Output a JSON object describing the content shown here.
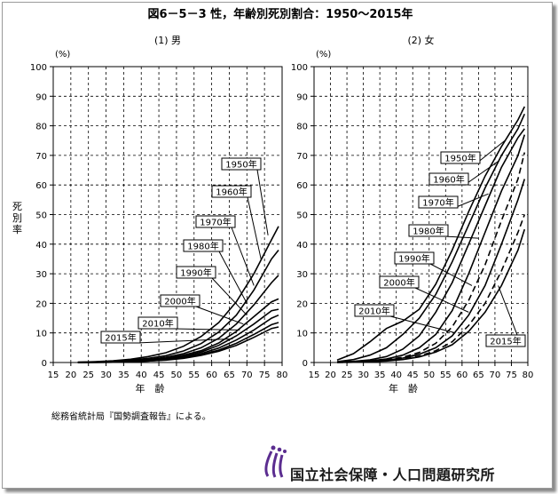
{
  "title": "図6－5－3 性，年齢別死別割合：1950〜2015年",
  "source_note": "総務省統計局『国勢調査報告』による。",
  "org_name": "国立社会保障・人口問題研究所",
  "y_axis_label": "死別率",
  "y_unit": "(%)",
  "x_axis_label": "年　齢",
  "chart_data": [
    {
      "type": "line",
      "subtitle": "(1) 男",
      "xlabel": "年　齢",
      "ylabel": "死別率",
      "unit": "(%)",
      "xlim": [
        15,
        80
      ],
      "ylim": [
        0,
        100
      ],
      "xticks": [
        15,
        20,
        25,
        30,
        35,
        40,
        45,
        50,
        55,
        60,
        65,
        70,
        75,
        80
      ],
      "yticks": [
        0,
        10,
        20,
        30,
        40,
        50,
        60,
        70,
        80,
        90,
        100
      ],
      "grid": true,
      "x": [
        22,
        27,
        32,
        37,
        42,
        47,
        52,
        57,
        62,
        67,
        72,
        77,
        79
      ],
      "series": [
        {
          "name": "1950年",
          "dashed": false,
          "values": [
            0.1,
            0.3,
            0.6,
            1.1,
            2.0,
            3.3,
            5.5,
            8.8,
            13.5,
            20.5,
            30.0,
            41.5,
            46.0
          ]
        },
        {
          "name": "1960年",
          "dashed": false,
          "values": [
            0.1,
            0.2,
            0.4,
            0.8,
            1.4,
            2.3,
            3.9,
            6.4,
            10.3,
            16.0,
            24.5,
            35.0,
            38.0
          ]
        },
        {
          "name": "1970年",
          "dashed": false,
          "values": [
            0.1,
            0.1,
            0.3,
            0.6,
            1.0,
            1.8,
            3.0,
            5.0,
            8.2,
            13.0,
            19.5,
            27.0,
            29.5
          ]
        },
        {
          "name": "1980年",
          "dashed": false,
          "values": [
            0.0,
            0.1,
            0.2,
            0.4,
            0.8,
            1.4,
            2.5,
            4.0,
            6.6,
            10.5,
            15.5,
            20.5,
            21.5
          ]
        },
        {
          "name": "1990年",
          "dashed": false,
          "values": [
            0.0,
            0.1,
            0.2,
            0.4,
            0.7,
            1.2,
            2.1,
            3.5,
            5.8,
            9.0,
            13.0,
            17.5,
            18.0
          ]
        },
        {
          "name": "2000年",
          "dashed": false,
          "values": [
            0.0,
            0.1,
            0.2,
            0.3,
            0.6,
            1.0,
            1.8,
            3.0,
            4.9,
            7.6,
            11.0,
            15.0,
            16.0
          ]
        },
        {
          "name": "2010年",
          "dashed": false,
          "values": [
            0.0,
            0.0,
            0.1,
            0.3,
            0.5,
            0.9,
            1.6,
            2.6,
            4.2,
            6.5,
            9.5,
            12.8,
            13.5
          ]
        },
        {
          "name": "2015年",
          "dashed": false,
          "values": [
            0.0,
            0.0,
            0.1,
            0.2,
            0.5,
            0.8,
            1.4,
            2.4,
            3.8,
            5.8,
            8.5,
            11.5,
            12.0
          ]
        }
      ]
    },
    {
      "type": "line",
      "subtitle": "(2) 女",
      "xlabel": "年　齢",
      "ylabel": "死別率",
      "unit": "(%)",
      "xlim": [
        15,
        80
      ],
      "ylim": [
        0,
        100
      ],
      "xticks": [
        15,
        20,
        25,
        30,
        35,
        40,
        45,
        50,
        55,
        60,
        65,
        70,
        75,
        80
      ],
      "yticks": [
        0,
        10,
        20,
        30,
        40,
        50,
        60,
        70,
        80,
        90,
        100
      ],
      "grid": true,
      "x": [
        22,
        27,
        32,
        37,
        42,
        47,
        52,
        57,
        62,
        67,
        72,
        77,
        79
      ],
      "series": [
        {
          "name": "1950年",
          "dashed": false,
          "values": [
            0.8,
            3.0,
            7.0,
            11.5,
            14.0,
            18.0,
            26.5,
            38.0,
            51.0,
            63.0,
            73.0,
            82.0,
            86.5
          ]
        },
        {
          "name": "1960年",
          "dashed": false,
          "values": [
            0.3,
            1.0,
            2.5,
            5.0,
            9.5,
            15.0,
            23.0,
            34.0,
            46.5,
            59.0,
            70.0,
            79.0,
            84.0
          ]
        },
        {
          "name": "1970年",
          "dashed": false,
          "values": [
            0.2,
            0.4,
            0.9,
            2.0,
            4.5,
            9.0,
            17.0,
            27.0,
            40.0,
            53.0,
            66.0,
            76.0,
            79.0
          ]
        },
        {
          "name": "1980年",
          "dashed": false,
          "values": [
            0.1,
            0.3,
            0.6,
            1.2,
            2.5,
            5.0,
            9.5,
            17.5,
            30.0,
            44.0,
            58.0,
            70.0,
            77.0
          ]
        },
        {
          "name": "1990年",
          "dashed": true,
          "values": [
            0.1,
            0.2,
            0.4,
            0.9,
            1.8,
            3.4,
            6.5,
            12.0,
            21.0,
            33.0,
            48.0,
            62.0,
            71.0
          ]
        },
        {
          "name": "2000年",
          "dashed": false,
          "values": [
            0.1,
            0.2,
            0.4,
            0.8,
            1.5,
            2.8,
            5.0,
            9.0,
            16.0,
            26.0,
            40.0,
            55.0,
            62.0
          ]
        },
        {
          "name": "2010年",
          "dashed": true,
          "values": [
            0.0,
            0.1,
            0.3,
            0.6,
            1.2,
            2.2,
            4.0,
            7.0,
            12.5,
            20.0,
            31.0,
            44.0,
            50.0
          ]
        },
        {
          "name": "2015年",
          "dashed": false,
          "values": [
            0.0,
            0.1,
            0.3,
            0.5,
            1.0,
            1.9,
            3.5,
            6.0,
            10.5,
            17.0,
            26.0,
            38.0,
            45.0
          ]
        }
      ]
    }
  ]
}
